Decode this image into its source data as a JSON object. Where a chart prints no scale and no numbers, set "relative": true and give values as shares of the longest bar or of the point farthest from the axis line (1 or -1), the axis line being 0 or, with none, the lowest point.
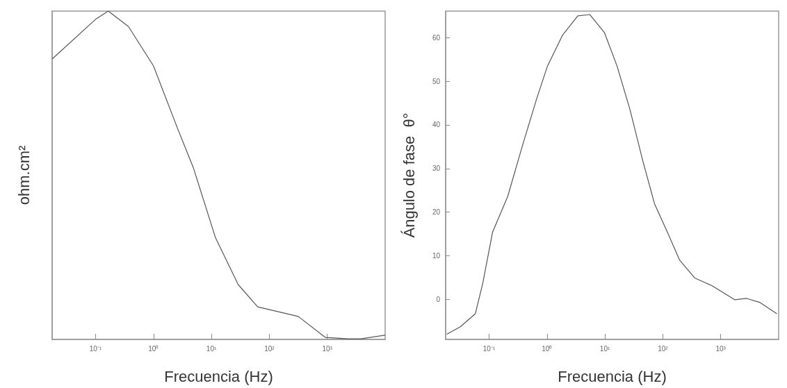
{
  "chart_data": [
    {
      "type": "line",
      "xlabel": "Frecuencia (Hz)",
      "ylabel": "ohm.cm²",
      "relative": true,
      "log": "x",
      "xlim": [
        0.0178,
        10000
      ],
      "xticks": [
        {
          "value": 0.1,
          "label": "10⁻¹"
        },
        {
          "value": 1,
          "label": "10⁰"
        },
        {
          "value": 10,
          "label": "10¹"
        },
        {
          "value": 100,
          "label": "10²"
        },
        {
          "value": 1000,
          "label": "10³"
        }
      ],
      "series": [
        {
          "color": "#555555",
          "x": [
            0.0178,
            0.1,
            0.166,
            0.37,
            1,
            2.6,
            4.9,
            11.7,
            29,
            63,
            316,
            930,
            2300,
            3800,
            10000
          ],
          "values": [
            0.854,
            0.975,
            1,
            0.953,
            0.833,
            0.643,
            0.522,
            0.311,
            0.167,
            0.099,
            0.07,
            0.006,
            0.002,
            0.002,
            0.013
          ]
        }
      ],
      "grid": false,
      "marker": "none",
      "line_style": "solid"
    },
    {
      "type": "line",
      "xlabel": "Frecuencia (Hz)",
      "ylabel": "Ángulo de fase  θ°",
      "log": "x",
      "xlim": [
        0.0178,
        10000
      ],
      "xticks": [
        {
          "value": 0.1,
          "label": "10⁻¹"
        },
        {
          "value": 1,
          "label": "10⁰"
        },
        {
          "value": 10,
          "label": "10¹"
        },
        {
          "value": 100,
          "label": "10²"
        },
        {
          "value": 1000,
          "label": "10³"
        }
      ],
      "ylim": [
        -9.2,
        66.1
      ],
      "yticks": [
        0,
        10,
        20,
        30,
        40,
        50,
        60
      ],
      "series": [
        {
          "color": "#555555",
          "x": [
            0.0186,
            0.032,
            0.058,
            0.078,
            0.115,
            0.21,
            0.38,
            0.66,
            1.02,
            1.86,
            3.4,
            5.5,
            9.8,
            16.2,
            27,
            45,
            72,
            120,
            195,
            355,
            710,
            1740,
            2800,
            4700,
            9300
          ],
          "values": [
            -8.0,
            -6.3,
            -3.3,
            3.7,
            15.4,
            23.6,
            35.4,
            45.9,
            53.5,
            60.6,
            65.0,
            65.3,
            61.2,
            53.5,
            43.6,
            31.8,
            21.9,
            15.4,
            9.0,
            4.9,
            3.1,
            -0.1,
            0.2,
            -0.7,
            -3.3
          ]
        }
      ],
      "grid": false,
      "marker": "none",
      "line_style": "solid"
    }
  ]
}
